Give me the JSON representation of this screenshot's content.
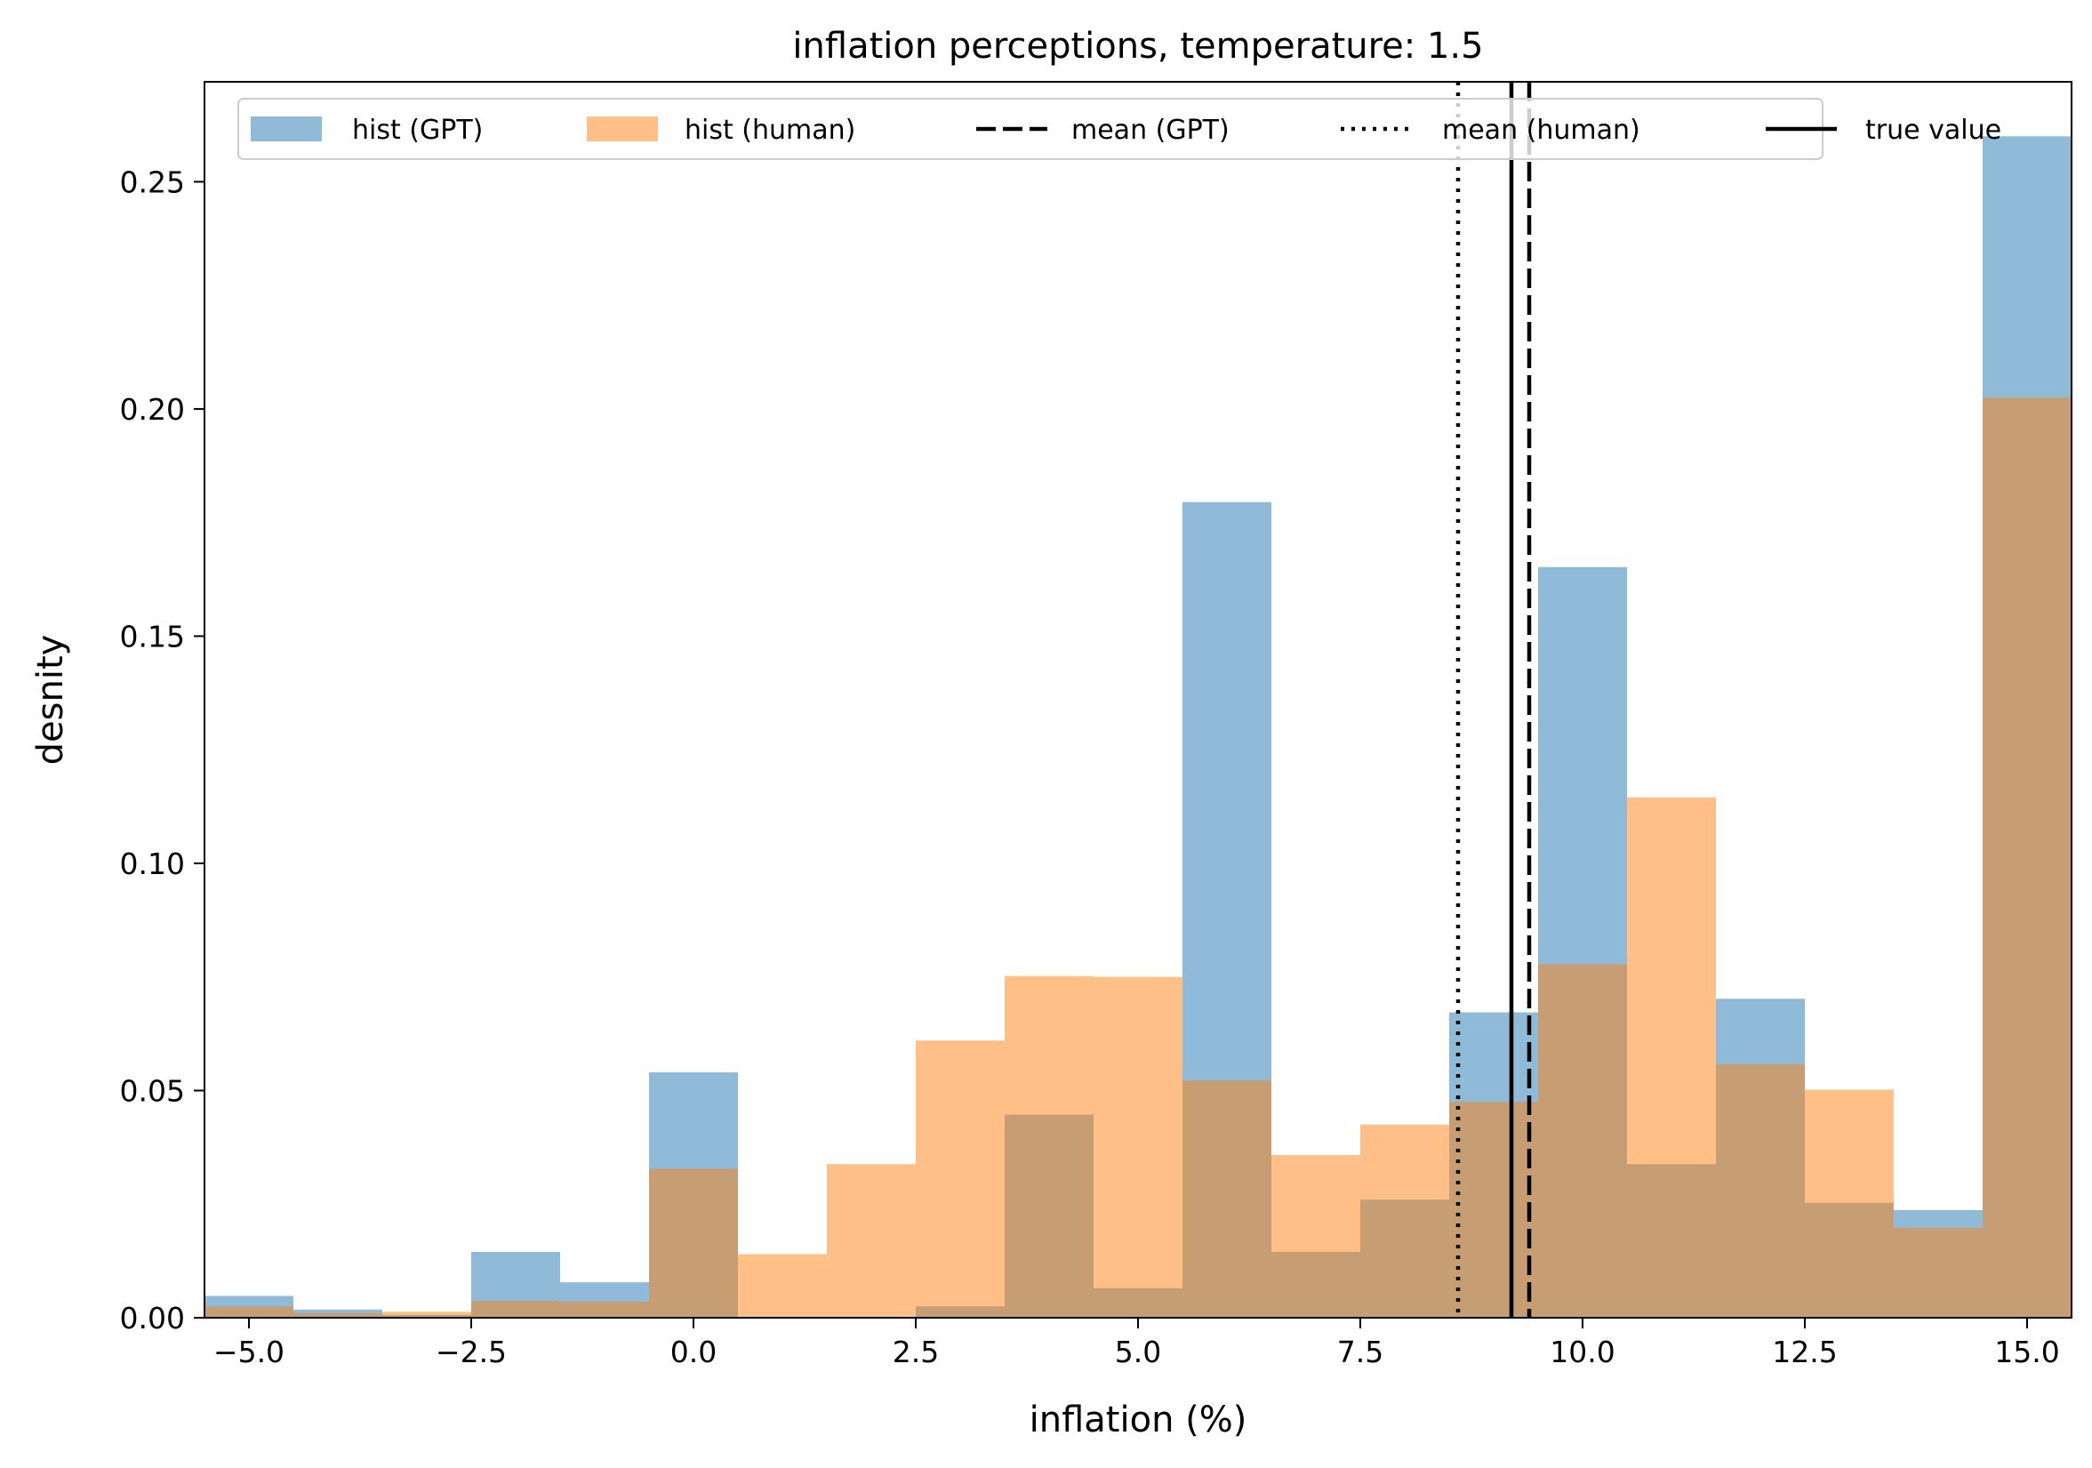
{
  "chart_data": {
    "type": "bar",
    "title": "inflation perceptions, temperature: 1.5",
    "xlabel": "inflation (%)",
    "ylabel": "desnity",
    "xlim": [
      -5.5,
      15.5
    ],
    "ylim": [
      0,
      0.272
    ],
    "xticks": [
      -5.0,
      -2.5,
      0.0,
      2.5,
      5.0,
      7.5,
      10.0,
      12.5,
      15.0
    ],
    "xtick_labels": [
      "−5.0",
      "−2.5",
      "0.0",
      "2.5",
      "5.0",
      "7.5",
      "10.0",
      "12.5",
      "15.0"
    ],
    "yticks": [
      0.0,
      0.05,
      0.1,
      0.15,
      0.2,
      0.25
    ],
    "ytick_labels": [
      "0.00",
      "0.05",
      "0.10",
      "0.15",
      "0.20",
      "0.25"
    ],
    "bin_edges": [
      -5.5,
      -4.5,
      -3.5,
      -2.5,
      -1.5,
      -0.5,
      0.5,
      1.5,
      2.5,
      3.5,
      4.5,
      5.5,
      6.5,
      7.5,
      8.5,
      9.5,
      10.5,
      11.5,
      12.5,
      13.5,
      14.5,
      15.5
    ],
    "series": [
      {
        "name": "hist (GPT)",
        "color": "#1f77b4",
        "alpha": 0.5,
        "values": [
          0.0048,
          0.0018,
          0.0006,
          0.0145,
          0.0078,
          0.054,
          0.0,
          0.0,
          0.0025,
          0.0447,
          0.0065,
          0.1795,
          0.0145,
          0.026,
          0.0672,
          0.1652,
          0.0338,
          0.0702,
          0.0253,
          0.0237,
          0.26
        ]
      },
      {
        "name": "hist (human)",
        "color": "#ff7f0e",
        "alpha": 0.5,
        "values": [
          0.0025,
          0.001,
          0.0013,
          0.0037,
          0.0035,
          0.0328,
          0.014,
          0.0338,
          0.061,
          0.0752,
          0.075,
          0.0522,
          0.0358,
          0.0425,
          0.0475,
          0.0778,
          0.1145,
          0.0558,
          0.0502,
          0.0198,
          0.2025
        ]
      }
    ],
    "vlines": [
      {
        "name": "mean (GPT)",
        "x": 9.4,
        "style": "dashed",
        "color": "#000000"
      },
      {
        "name": "mean (human)",
        "x": 8.6,
        "style": "dotted",
        "color": "#000000"
      },
      {
        "name": "true value",
        "x": 9.2,
        "style": "solid",
        "color": "#000000"
      }
    ],
    "legend": {
      "position": "upper center",
      "entries": [
        "hist (GPT)",
        "hist (human)",
        "mean (GPT)",
        "mean (human)",
        "true value"
      ]
    }
  }
}
